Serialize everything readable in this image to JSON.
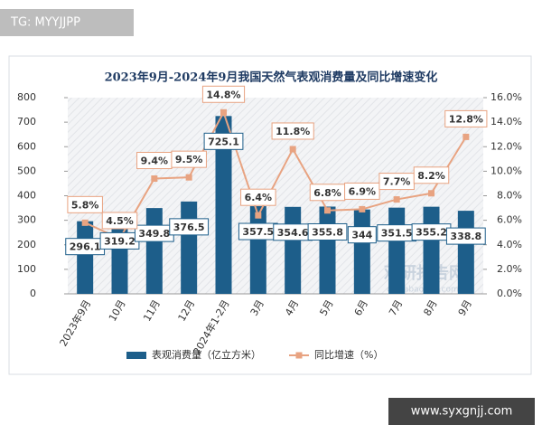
{
  "overlay_labels": {
    "top_left": "TG: MYYJJPP",
    "bottom_right": "www.syxgnjj.com"
  },
  "watermark": {
    "name": "观研报告网",
    "site": "chinabaogao.com"
  },
  "chart_data": {
    "type": "bar-line",
    "title": "2023年9月-2024年9月我国天然气表观消费量及同比增速变化",
    "categories": [
      "2023年9月",
      "10月",
      "11月",
      "12月",
      "2024年1-2月",
      "3月",
      "4月",
      "5月",
      "6月",
      "7月",
      "8月",
      "9月"
    ],
    "series": [
      {
        "name": "表观消费量（亿立方米）",
        "type": "bar",
        "color": "#1d5e8a",
        "values": [
          296.1,
          319.2,
          349.8,
          376.5,
          725.1,
          357.5,
          354.6,
          355.8,
          344,
          351.5,
          355.2,
          338.8
        ]
      },
      {
        "name": "同比增速（%）",
        "type": "line",
        "axis": "y2",
        "color": "#e8a381",
        "values": [
          5.8,
          4.5,
          9.4,
          9.5,
          14.8,
          6.4,
          11.8,
          6.8,
          6.9,
          7.7,
          8.2,
          12.8
        ],
        "value_labels": [
          "5.8%",
          "4.5%",
          "9.4%",
          "9.5%",
          "14.8%",
          "6.4%",
          "11.8%",
          "6.8%",
          "6.9%",
          "7.7%",
          "8.2%",
          "12.8%"
        ]
      }
    ],
    "ylim": [
      0,
      800
    ],
    "yticks": [
      0,
      100,
      200,
      300,
      400,
      500,
      600,
      700,
      800
    ],
    "y2lim": [
      0,
      16
    ],
    "y2ticks": [
      {
        "value": 0,
        "label": "0.0%"
      },
      {
        "value": 2,
        "label": "2.0%"
      },
      {
        "value": 4,
        "label": "4.0%"
      },
      {
        "value": 6,
        "label": "6.0%"
      },
      {
        "value": 8,
        "label": "8.0%"
      },
      {
        "value": 10,
        "label": "10.0%"
      },
      {
        "value": 12,
        "label": "12.0%"
      },
      {
        "value": 14,
        "label": "14.0%"
      },
      {
        "value": 16,
        "label": "16.0%"
      }
    ],
    "legend": "bottom"
  }
}
